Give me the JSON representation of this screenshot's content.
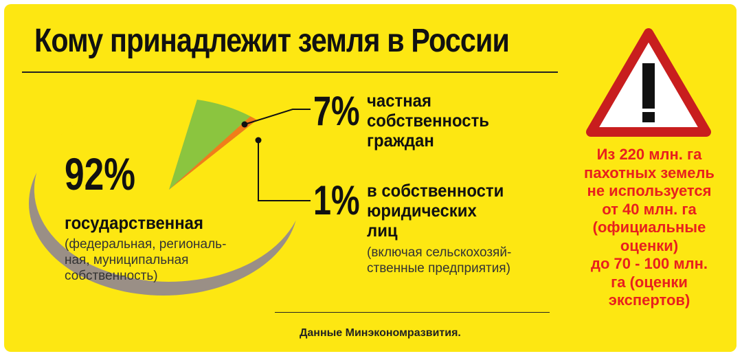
{
  "title": "Кому принадлежит земля в России",
  "chart_data": {
    "type": "pie",
    "slices": [
      {
        "value": 92,
        "label_pct": "92%",
        "label": "государственная",
        "note": "(федеральная, региональ-\nная, муниципальная\nсобственность)",
        "color": "#fde712"
      },
      {
        "value": 7,
        "label_pct": "7%",
        "label": "частная\nсобственность\nграждан",
        "note": "",
        "color": "#8bc53f"
      },
      {
        "value": 1,
        "label_pct": "1%",
        "label": "в собственности\nюридических\nлиц",
        "note": "(включая сельскохозяй-\nственные предприятия)",
        "color": "#f07d1a"
      }
    ]
  },
  "source": "Данные Минэкономразвития.",
  "warning": {
    "icon": "warning-triangle-icon",
    "text": "Из 220 млн. га\nпахотных земель\nне используется\nот 40 млн. га\n(официальные\nоценки)\nдо 70 - 100 млн.\nга (оценки\nэкспертов)",
    "color": "#e8201e"
  },
  "colors": {
    "background": "#fde712",
    "side_panel": "#fde712",
    "pie_shadow": "#9a8f86"
  }
}
